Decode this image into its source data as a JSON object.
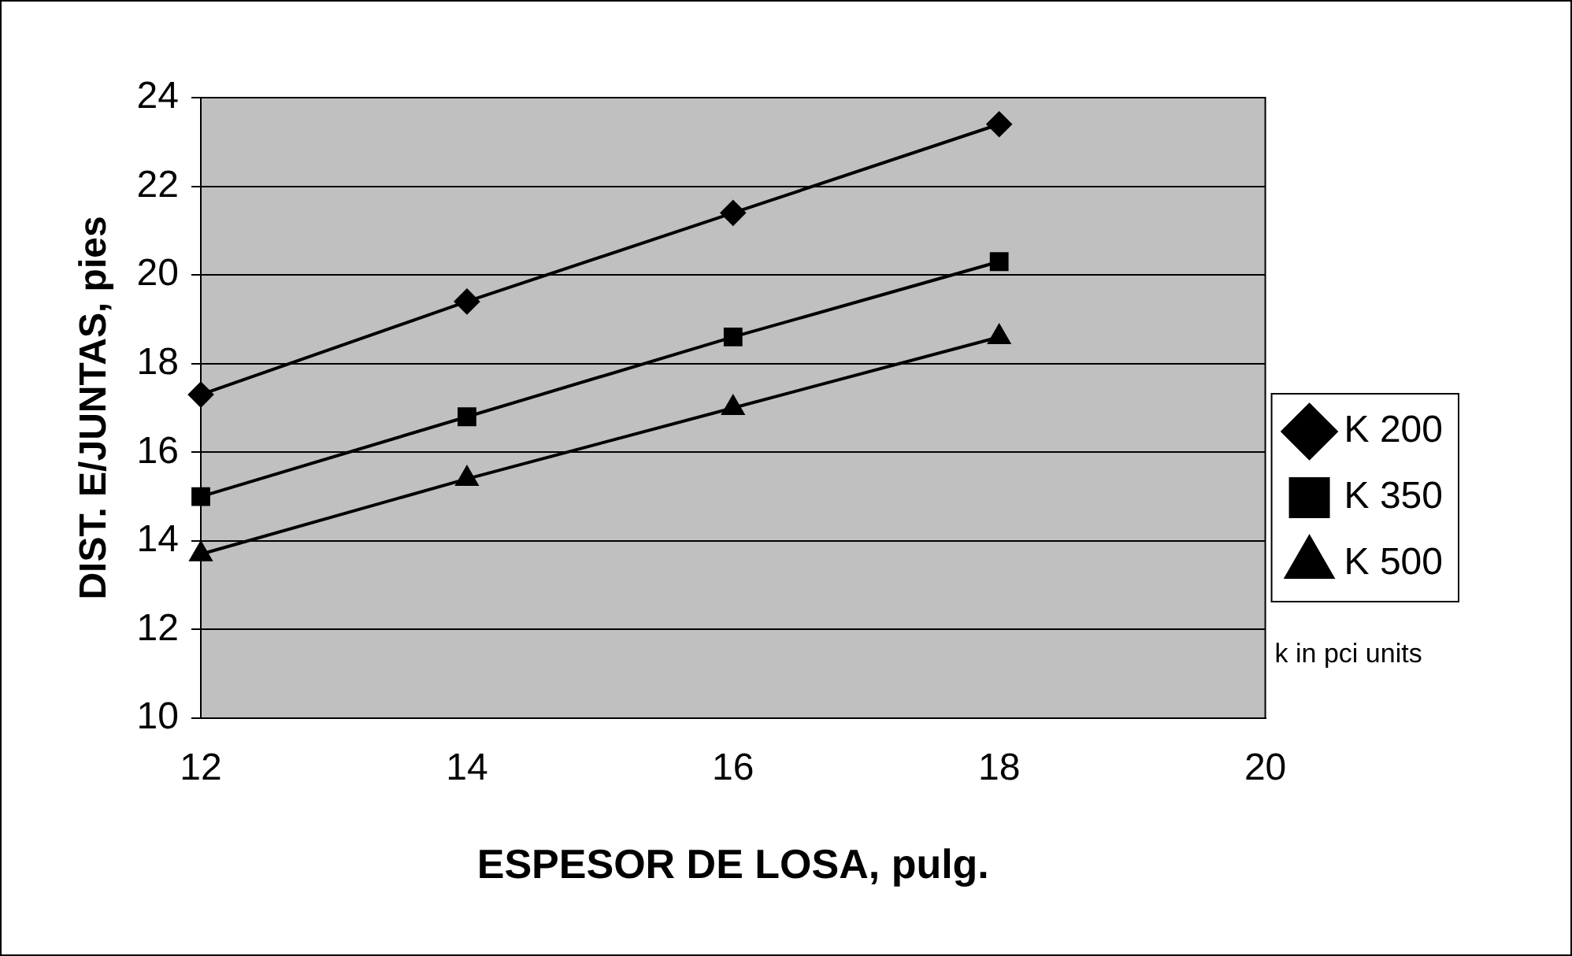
{
  "chart_data": {
    "type": "line",
    "xlabel": "ESPESOR DE LOSA, pulg.",
    "ylabel": "DIST. E/JUNTAS, pies",
    "x": [
      12,
      14,
      16,
      18
    ],
    "series": [
      {
        "name": "K 200",
        "color": "#000000",
        "marker": "diamond",
        "values": [
          17.3,
          19.4,
          21.4,
          23.4
        ]
      },
      {
        "name": "K 350",
        "color": "#000000",
        "marker": "square",
        "values": [
          15.0,
          16.8,
          18.6,
          20.3
        ]
      },
      {
        "name": "K 500",
        "color": "#000000",
        "marker": "triangle",
        "values": [
          13.7,
          15.4,
          17.0,
          18.6
        ]
      }
    ],
    "xlim": [
      12,
      20
    ],
    "xticks": [
      12,
      14,
      16,
      18,
      20
    ],
    "ylim": [
      10,
      24
    ],
    "yticks": [
      10,
      12,
      14,
      16,
      18,
      20,
      22,
      24
    ],
    "grid": "y",
    "legend": "right",
    "line_style": "solid",
    "annotations": [
      "k in pci units"
    ]
  }
}
